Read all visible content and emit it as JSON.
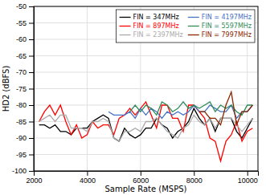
{
  "chart_data": {
    "type": "line",
    "x_label": "Sample Rate (MSPS)",
    "y_label": "HD2 (dBFS)",
    "xlim": [
      2000,
      10400
    ],
    "ylim": [
      -100,
      -50
    ],
    "xticks": [
      2000,
      4000,
      6000,
      8000,
      10000
    ],
    "yticks": [
      -100,
      -95,
      -90,
      -85,
      -80,
      -75,
      -70,
      -65,
      -60,
      -55,
      -50
    ],
    "grid": true,
    "legend": "upper right",
    "series": [
      {
        "name": "FIN = 347MHz",
        "color": "#000000",
        "x": [
          2200,
          2400,
          2600,
          2800,
          3000,
          3200,
          3400,
          3600,
          3800,
          4000,
          4200,
          4400,
          4600,
          4800,
          5000,
          5200,
          5400,
          5600,
          5800,
          6000,
          6200,
          6400,
          6600,
          6800,
          7000,
          7200,
          7400,
          7600,
          7800,
          8000,
          8200,
          8400,
          8600,
          8800,
          9000,
          9200,
          9400,
          9600,
          9800,
          10000,
          10200
        ],
        "values": [
          -86,
          -86,
          -87,
          -86,
          -88,
          -88,
          -89,
          -87,
          -87,
          -87,
          -85,
          -84,
          -83,
          -84,
          -90,
          -91,
          -87,
          -89,
          -90,
          -89,
          -87,
          -87,
          -84,
          -86,
          -87,
          -90,
          -88,
          -87,
          -85,
          -81,
          -84,
          -86,
          -84,
          -88,
          -84,
          -84,
          -84,
          -88,
          -90,
          -87,
          -84
        ]
      },
      {
        "name": "FIN = 897MHz",
        "color": "#ff0000",
        "x": [
          2200,
          2400,
          2600,
          2800,
          3000,
          3200,
          3400,
          3600,
          3800,
          4000,
          4200,
          4400,
          4600,
          4800,
          5000,
          5200,
          5400,
          5600,
          5800,
          6000,
          6200,
          6400,
          6600,
          6800,
          7000,
          7200,
          7400,
          7600,
          7800,
          8000,
          8200,
          8400,
          8600,
          8800,
          9000,
          9200,
          9400,
          9600,
          9800,
          10000,
          10200
        ],
        "values": [
          -85,
          -82,
          -80,
          -83,
          -80,
          -85,
          -89,
          -86,
          -90,
          -89,
          -85,
          -87,
          -86,
          -86,
          -89,
          -84,
          -83,
          -81,
          -83,
          -81,
          -79,
          -83,
          -87,
          -80,
          -80,
          -84,
          -84,
          -88,
          -80,
          -80,
          -82,
          -84,
          -90,
          -91,
          -97,
          -91,
          -89,
          -85,
          -91,
          -88,
          -87
        ]
      },
      {
        "name": "FIN = 2397MHz",
        "color": "#aaaaaa",
        "x": [
          2200,
          2400,
          2600,
          2800,
          3000,
          3200,
          3400,
          3600,
          3800,
          4000,
          4200,
          4400,
          4600,
          4800,
          5000,
          5200,
          5400,
          5600,
          5800,
          6000,
          6200,
          6400,
          6600,
          6800,
          7000,
          7200,
          7400,
          7600,
          7800,
          8000,
          8200,
          8400,
          8600,
          8800,
          9000,
          9200,
          9400,
          9600,
          9800,
          10000,
          10200
        ],
        "values": [
          -85,
          -84,
          -83,
          -85,
          -83,
          -83,
          -87,
          -87,
          -87,
          -88,
          -85,
          -85,
          -84,
          -85,
          -90,
          -91,
          -88,
          -88,
          -87,
          -88,
          -85,
          -85,
          -84,
          -86,
          -88,
          -89,
          -90,
          -87,
          -86,
          -83,
          -85,
          -86,
          -84,
          -87,
          -84,
          -84,
          -84,
          -86,
          -88,
          -86,
          -84
        ]
      },
      {
        "name": "FIN = 4197MHz",
        "color": "#4472c4",
        "x": [
          4800,
          5000,
          5200,
          5400,
          5600,
          5800,
          6000,
          6200,
          6400,
          6600,
          6800,
          7000,
          7200,
          7400,
          7600,
          7800,
          8000,
          8200,
          8400,
          8600,
          8800,
          9000,
          9200,
          9400,
          9600,
          9800,
          10000,
          10200
        ],
        "values": [
          -82,
          -83,
          -83,
          -83,
          -82,
          -84,
          -81,
          -83,
          -81,
          -82,
          -84,
          -82,
          -83,
          -82,
          -83,
          -82,
          -80,
          -82,
          -82,
          -80,
          -81,
          -82,
          -82,
          -80,
          -84,
          -82,
          -82,
          -80
        ]
      },
      {
        "name": "FIN = 5597MHz",
        "color": "#2e8b57",
        "x": [
          5600,
          5800,
          6000,
          6200,
          6400,
          6600,
          6800,
          7000,
          7200,
          7400,
          7600,
          7800,
          8000,
          8200,
          8400,
          8600,
          8800,
          9000,
          9200,
          9400,
          9600,
          9800,
          10000,
          10200
        ],
        "values": [
          -82,
          -80,
          -82,
          -80,
          -81,
          -83,
          -79,
          -80,
          -82,
          -81,
          -79,
          -81,
          -80,
          -81,
          -80,
          -79,
          -82,
          -80,
          -81,
          -80,
          -82,
          -83,
          -80,
          -80
        ]
      },
      {
        "name": "FIN = 7997MHz",
        "color": "#8b2500",
        "x": [
          8200,
          8400,
          8600,
          8800,
          9000,
          9200,
          9400,
          9600,
          9800,
          10000,
          10200
        ],
        "values": [
          -82,
          -82,
          -84,
          -84,
          -86,
          -80,
          -76,
          -86,
          -82,
          -82,
          -80
        ]
      }
    ]
  }
}
